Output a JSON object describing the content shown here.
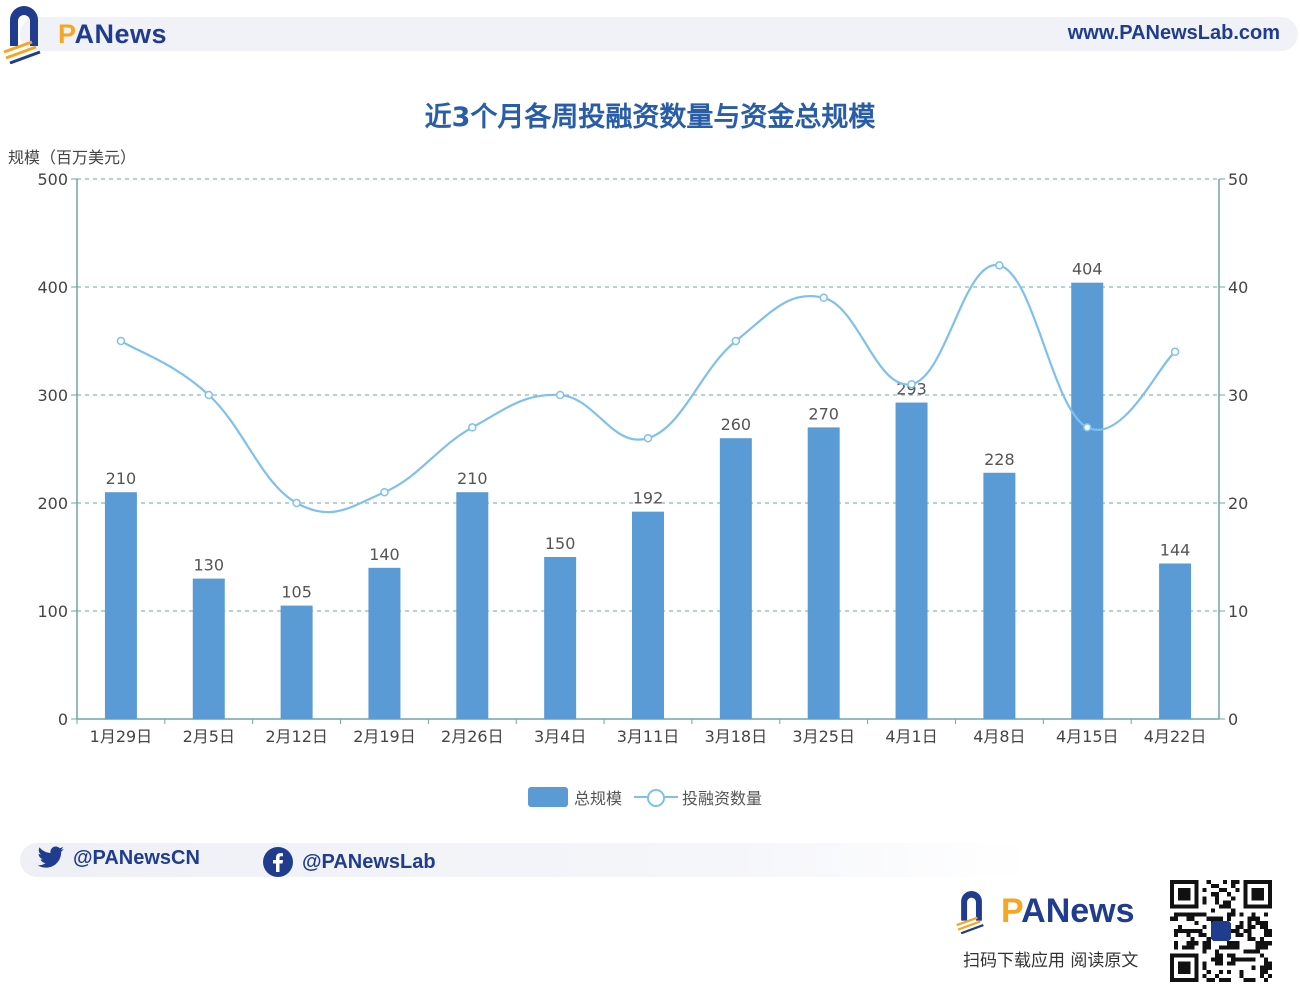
{
  "header": {
    "brand": "PANews",
    "url": "www.PANewsLab.com"
  },
  "chart_title": "近3个月各周投融资数量与资金总规模",
  "footer": {
    "twitter_handle": "@PANewsCN",
    "facebook_handle": "@PANewsLab",
    "brand": "PANews",
    "scan_text": "扫码下载应用  阅读原文"
  },
  "colors": {
    "bar": "#5b9bd5",
    "line": "#7ec0ee",
    "title": "#2a5da8",
    "brand": "#1f3c8f",
    "accent": "#f5a623",
    "grid": "#6fa5a0"
  },
  "chart_data": {
    "type": "bar",
    "title": "近3个月各周投融资数量与资金总规模",
    "categories": [
      "1月29日",
      "2月5日",
      "2月12日",
      "2月19日",
      "2月26日",
      "3月4日",
      "3月11日",
      "3月18日",
      "3月25日",
      "4月1日",
      "4月8日",
      "4月15日",
      "4月22日"
    ],
    "series": [
      {
        "name": "总规模",
        "type": "bar",
        "axis": "left",
        "values": [
          210,
          130,
          105,
          140,
          210,
          150,
          192,
          260,
          270,
          293,
          228,
          404,
          144
        ],
        "data_labels": true
      },
      {
        "name": "投融资数量",
        "type": "line",
        "smooth": true,
        "axis": "right",
        "values": [
          35,
          30,
          20,
          21,
          27,
          30,
          26,
          35,
          39,
          31,
          42,
          27,
          34
        ]
      }
    ],
    "ylabel": "规模（百万美元）",
    "ylim": [
      0,
      500
    ],
    "yticks": [
      0,
      100,
      200,
      300,
      400,
      500
    ],
    "y2lim": [
      0,
      50
    ],
    "y2ticks": [
      0,
      10,
      20,
      30,
      40,
      50
    ],
    "grid": "dashed horizontal",
    "legend": "bottom-center"
  }
}
